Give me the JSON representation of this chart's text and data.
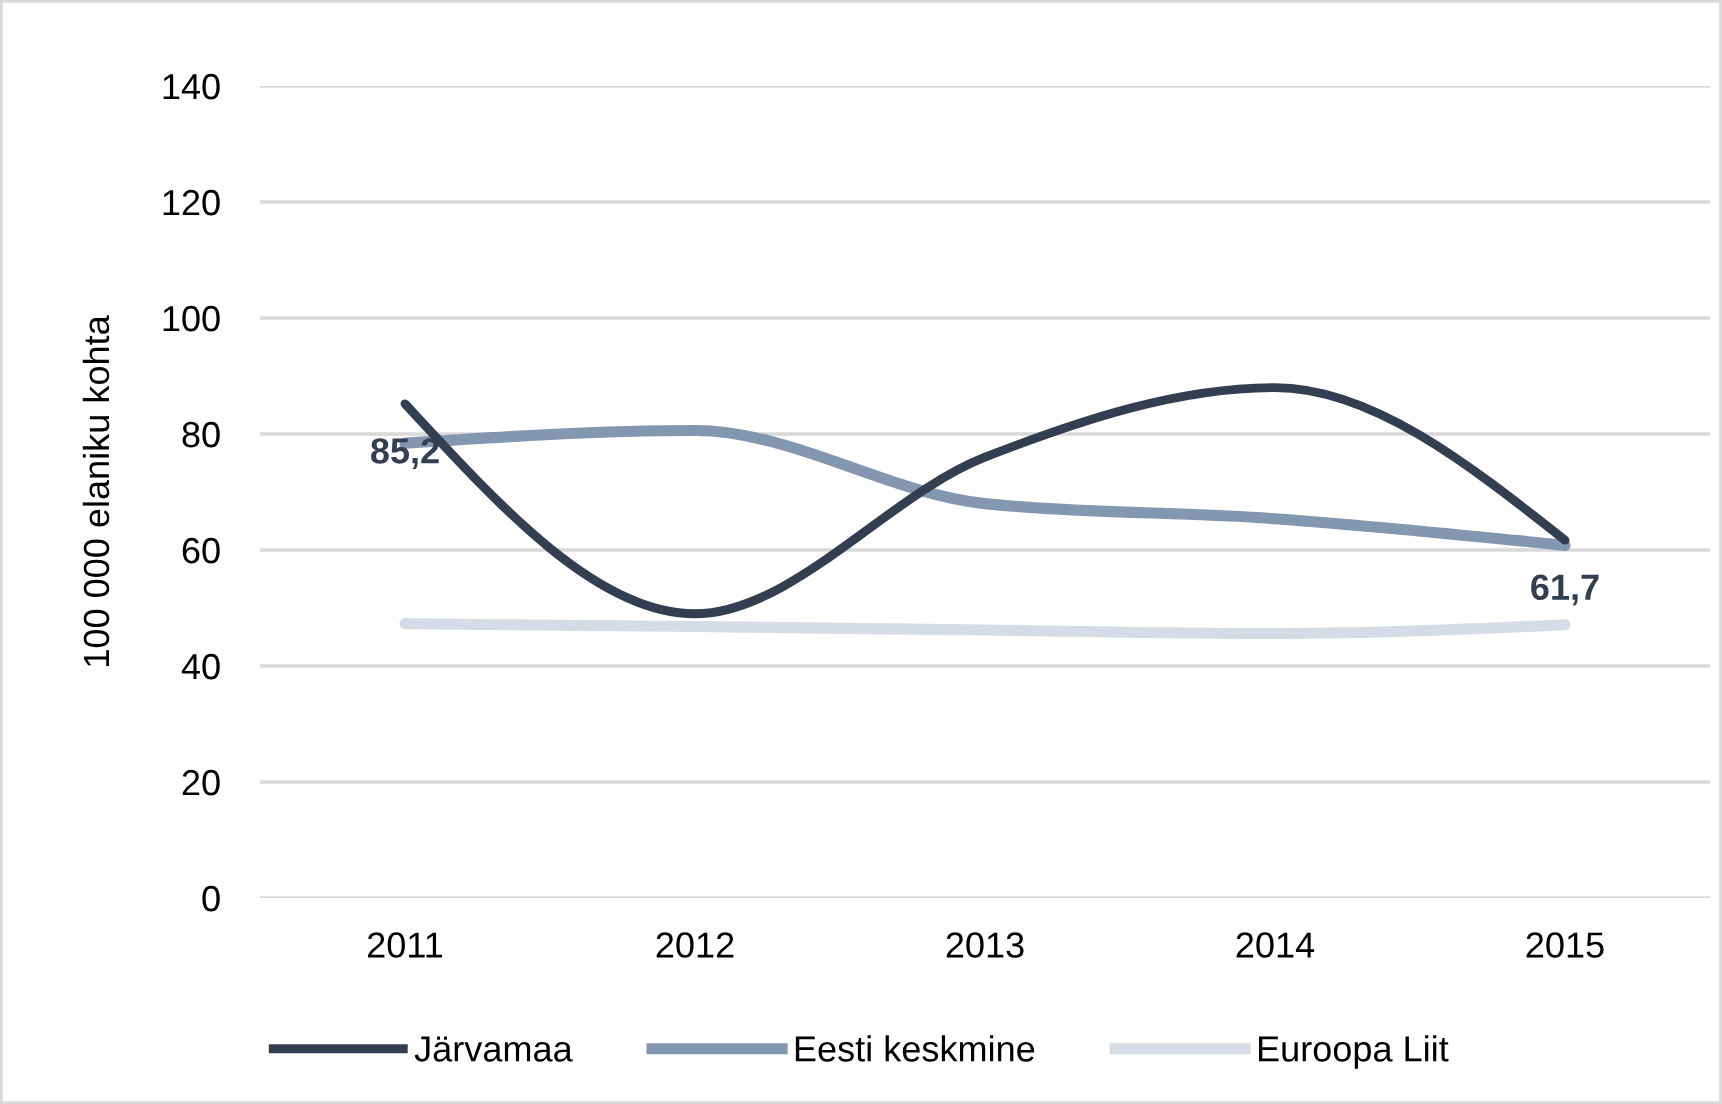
{
  "chart_data": {
    "type": "line",
    "ylabel": "100 000 elaniku kohta",
    "categories": [
      "2011",
      "2012",
      "2013",
      "2014",
      "2015"
    ],
    "series": [
      {
        "name": "Järvamaa",
        "color": "#333f50",
        "values": [
          85.2,
          49,
          76,
          88,
          61.7
        ],
        "value_labels": [
          "85,2",
          null,
          null,
          null,
          "61,7"
        ]
      },
      {
        "name": "Eesti keskmine",
        "color": "#8497b0",
        "values": [
          78.4,
          80.6,
          68,
          65.4,
          60.8
        ]
      },
      {
        "name": "Euroopa Liit",
        "color": "#d6dce5",
        "values": [
          47.3,
          46.8,
          46.2,
          45.6,
          47.1
        ]
      }
    ],
    "ylim": [
      0,
      140
    ],
    "yticks": [
      0,
      20,
      40,
      60,
      80,
      100,
      120,
      140
    ],
    "grid": "y",
    "legend": "bottom",
    "line_style": "solid"
  }
}
